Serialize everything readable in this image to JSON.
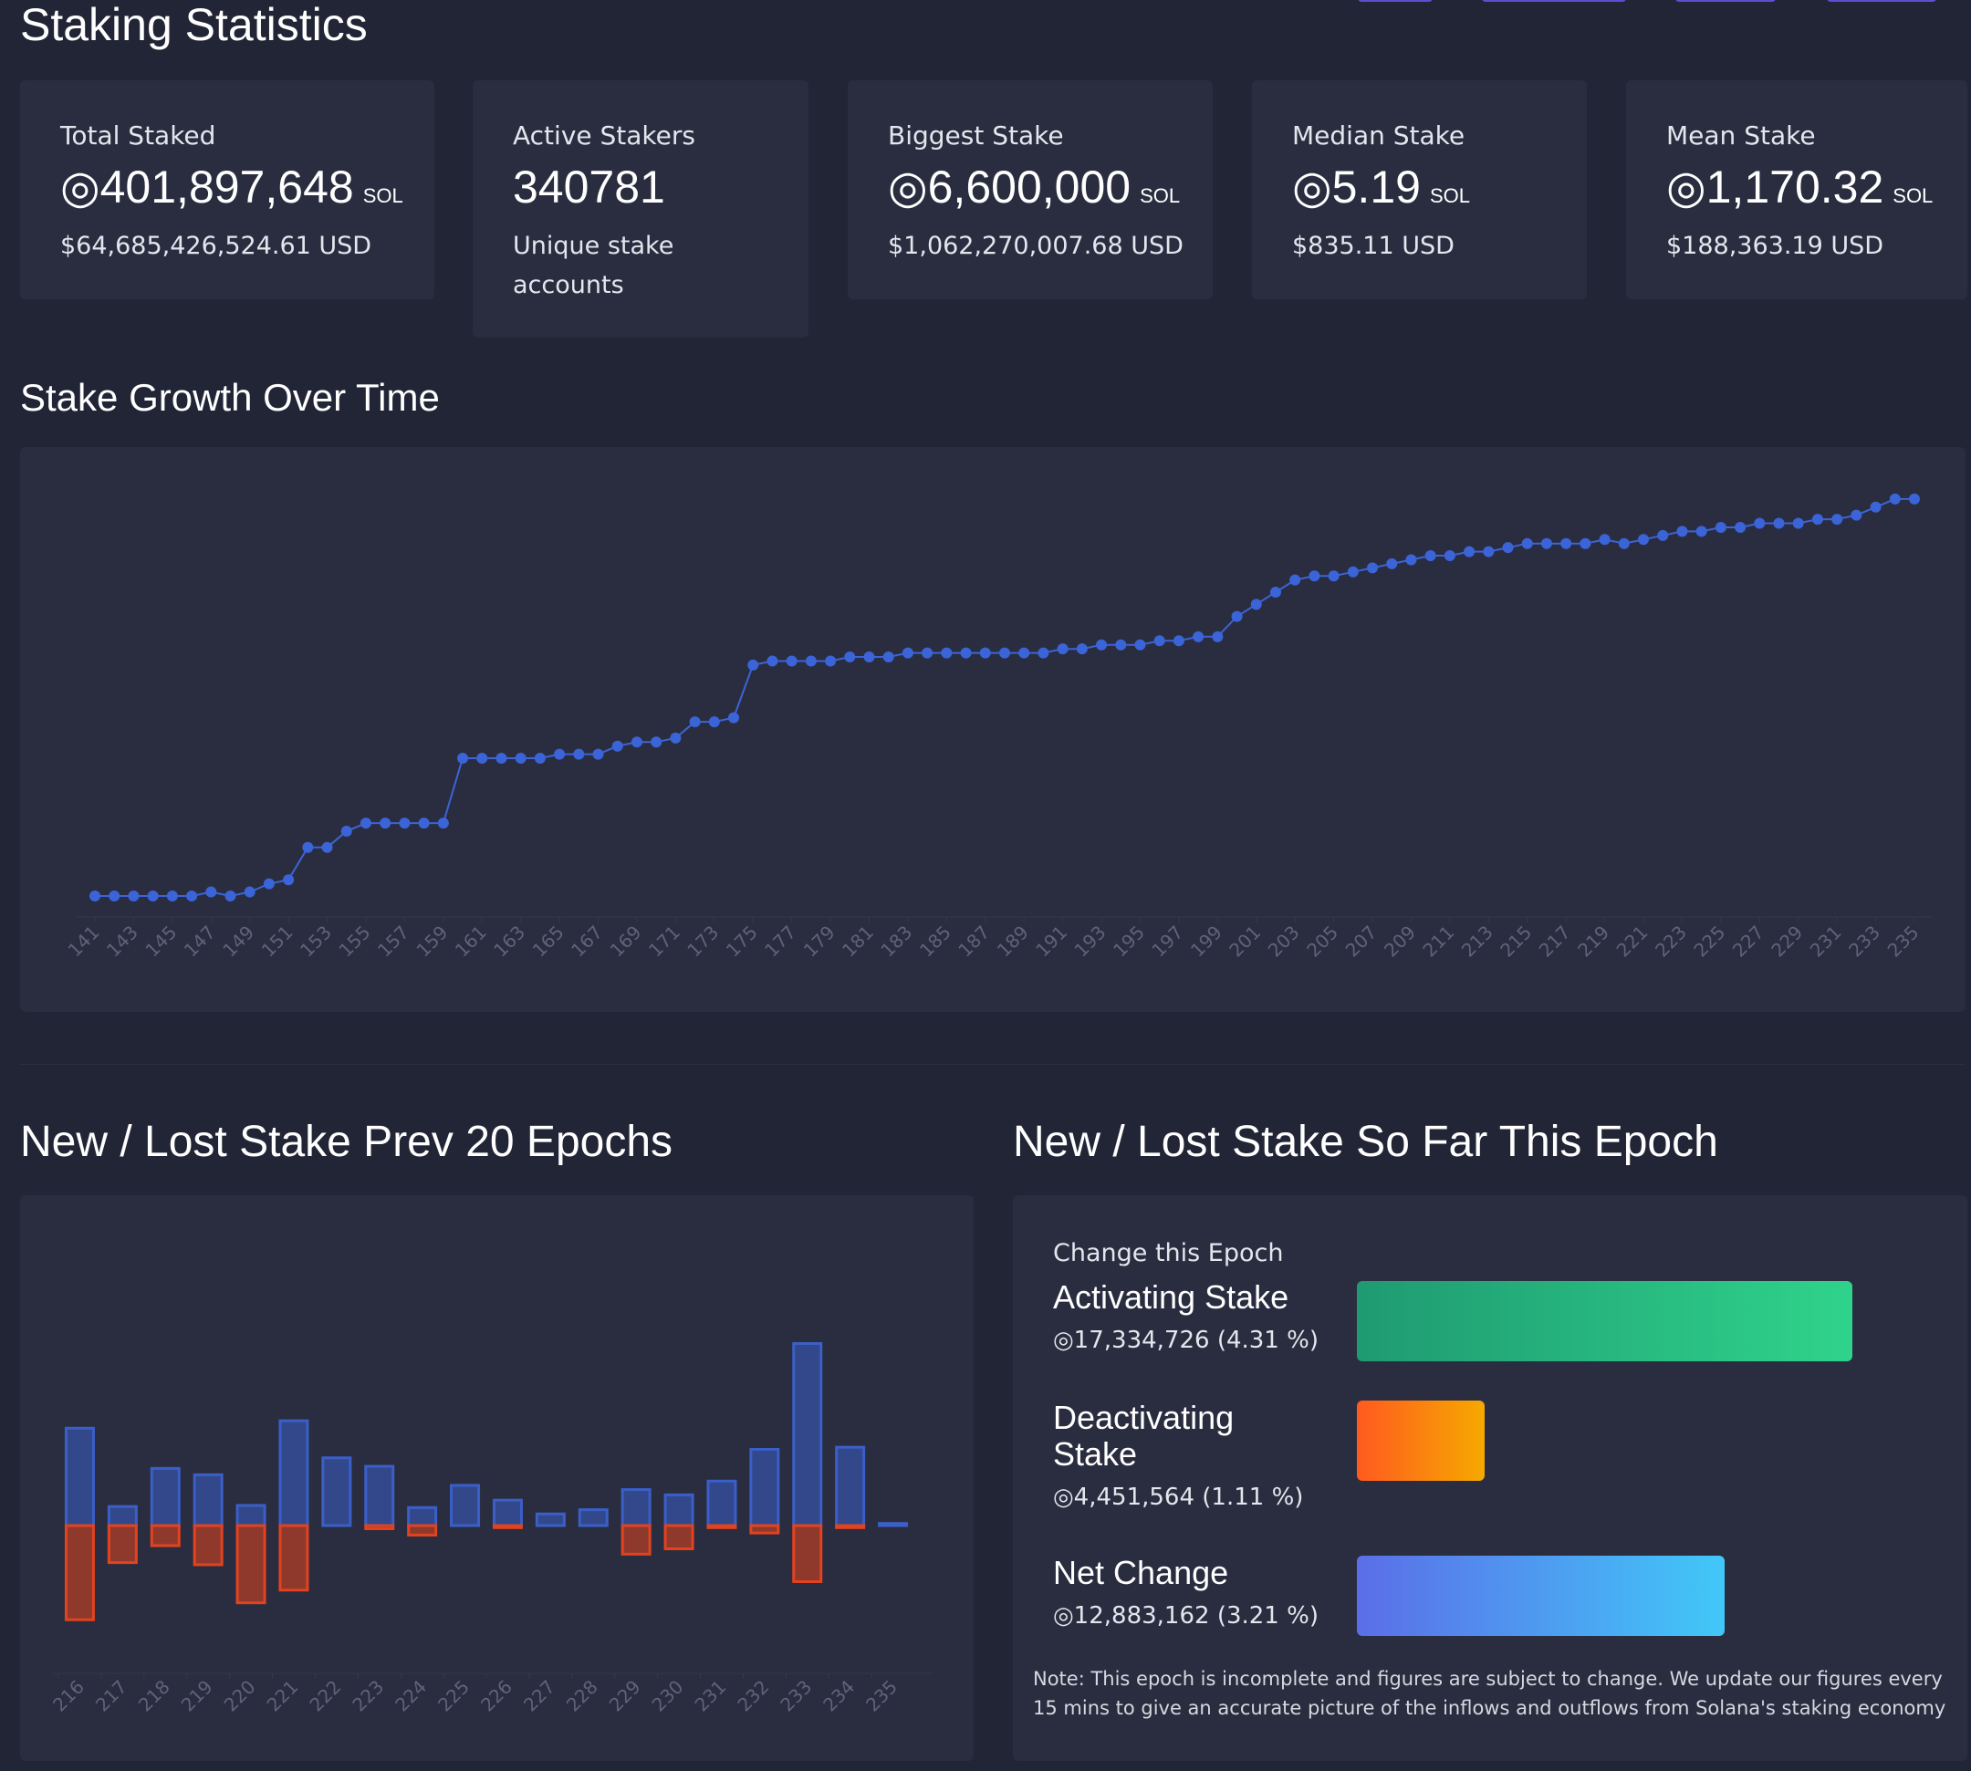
{
  "colors": {
    "background": "#222535",
    "card": "#2a2d3f",
    "line_series": "#3b64d8",
    "positive_bar": "#3a5fc8",
    "negative_bar": "#e2431f",
    "activating_gradient": [
      "#1f9a72",
      "#2fd38b"
    ],
    "deactivating_gradient": [
      "#ff5a1f",
      "#f6a900"
    ],
    "net_gradient": [
      "#5b6ee8",
      "#41c8f8"
    ]
  },
  "header": {
    "title": "Staking Statistics"
  },
  "stats": [
    {
      "label": "Total Staked",
      "value": "◎401,897,648",
      "unit": "SOL",
      "sub": "$64,685,426,524.61 USD"
    },
    {
      "label": "Active Stakers",
      "value": "340781",
      "unit": "",
      "sub": "Unique stake accounts"
    },
    {
      "label": "Biggest Stake",
      "value": "◎6,600,000",
      "unit": "SOL",
      "sub": "$1,062,270,007.68 USD"
    },
    {
      "label": "Median Stake",
      "value": "◎5.19",
      "unit": "SOL",
      "sub": "$835.11 USD"
    },
    {
      "label": "Mean Stake",
      "value": "◎1,170.32",
      "unit": "SOL",
      "sub": "$188,363.19 USD"
    }
  ],
  "growth": {
    "title": "Stake Growth Over Time"
  },
  "prev_epochs": {
    "title": "New / Lost Stake Prev 20 Epochs"
  },
  "this_epoch": {
    "title": "New / Lost Stake So Far This Epoch",
    "change_label": "Change this Epoch",
    "activating": {
      "label": "Activating Stake",
      "value": "◎17,334,726 (4.31 %)",
      "fraction": 1.0
    },
    "deactivating": {
      "label": "Deactivating Stake",
      "value": "◎4,451,564 (1.11 %)",
      "fraction": 0.257
    },
    "net": {
      "label": "Net Change",
      "value": "◎12,883,162 (3.21 %)",
      "fraction": 0.743
    },
    "note": "Note: This epoch is incomplete and figures are subject to change. We update our figures every 15 mins to give an accurate picture of the inflows and outflows from Solana's staking economy"
  },
  "chart_data": [
    {
      "type": "line",
      "x": [
        141,
        142,
        143,
        144,
        145,
        146,
        147,
        148,
        149,
        150,
        151,
        152,
        153,
        154,
        155,
        156,
        157,
        158,
        159,
        160,
        161,
        162,
        163,
        164,
        165,
        166,
        167,
        168,
        169,
        170,
        171,
        172,
        173,
        174,
        175,
        176,
        177,
        178,
        179,
        180,
        181,
        182,
        183,
        184,
        185,
        186,
        187,
        188,
        189,
        190,
        191,
        192,
        193,
        194,
        195,
        196,
        197,
        198,
        199,
        200,
        201,
        202,
        203,
        204,
        205,
        206,
        207,
        208,
        209,
        210,
        211,
        212,
        213,
        214,
        215,
        216,
        217,
        218,
        219,
        220,
        221,
        222,
        223,
        224,
        225,
        226,
        227,
        228,
        229,
        230,
        231,
        232,
        233,
        234,
        235
      ],
      "y": [
        0,
        0,
        0,
        0,
        0,
        0,
        1,
        0,
        1,
        3,
        4,
        12,
        12,
        16,
        18,
        18,
        18,
        18,
        18,
        34,
        34,
        34,
        34,
        34,
        35,
        35,
        35,
        37,
        38,
        38,
        39,
        43,
        43,
        44,
        57,
        58,
        58,
        58,
        58,
        59,
        59,
        59,
        60,
        60,
        60,
        60,
        60,
        60,
        60,
        60,
        61,
        61,
        62,
        62,
        62,
        63,
        63,
        64,
        64,
        69,
        72,
        75,
        78,
        79,
        79,
        80,
        81,
        82,
        83,
        84,
        84,
        85,
        85,
        86,
        87,
        87,
        87,
        87,
        88,
        87,
        88,
        89,
        90,
        90,
        91,
        91,
        92,
        92,
        92,
        93,
        93,
        94,
        96,
        98,
        98
      ],
      "xtick_labels": [
        "141",
        "143",
        "145",
        "147",
        "149",
        "151",
        "153",
        "155",
        "157",
        "159",
        "161",
        "163",
        "165",
        "167",
        "169",
        "171",
        "173",
        "175",
        "177",
        "179",
        "181",
        "183",
        "185",
        "187",
        "189",
        "191",
        "193",
        "195",
        "197",
        "199",
        "201",
        "203",
        "205",
        "207",
        "209",
        "211",
        "213",
        "215",
        "217",
        "219",
        "221",
        "223",
        "225",
        "227",
        "229",
        "231",
        "233",
        "235"
      ]
    },
    {
      "type": "bar",
      "categories": [
        "216",
        "217",
        "218",
        "219",
        "220",
        "221",
        "222",
        "223",
        "224",
        "225",
        "226",
        "227",
        "228",
        "229",
        "230",
        "231",
        "232",
        "233",
        "234",
        "235"
      ],
      "series": [
        {
          "values": [
            9.2,
            1.8,
            5.4,
            4.8,
            1.9,
            9.9,
            6.4,
            5.6,
            1.7,
            3.8,
            2.4,
            1.1,
            1.5,
            3.4,
            2.9,
            4.2,
            7.2,
            17.2,
            7.4,
            0.2
          ]
        },
        {
          "values": [
            -8.9,
            -3.5,
            -1.9,
            -3.7,
            -7.3,
            -6.1,
            0,
            -0.3,
            -0.9,
            0,
            -0.2,
            0,
            0,
            -2.7,
            -2.2,
            -0.2,
            -0.7,
            -5.3,
            -0.2,
            0
          ]
        }
      ]
    }
  ]
}
